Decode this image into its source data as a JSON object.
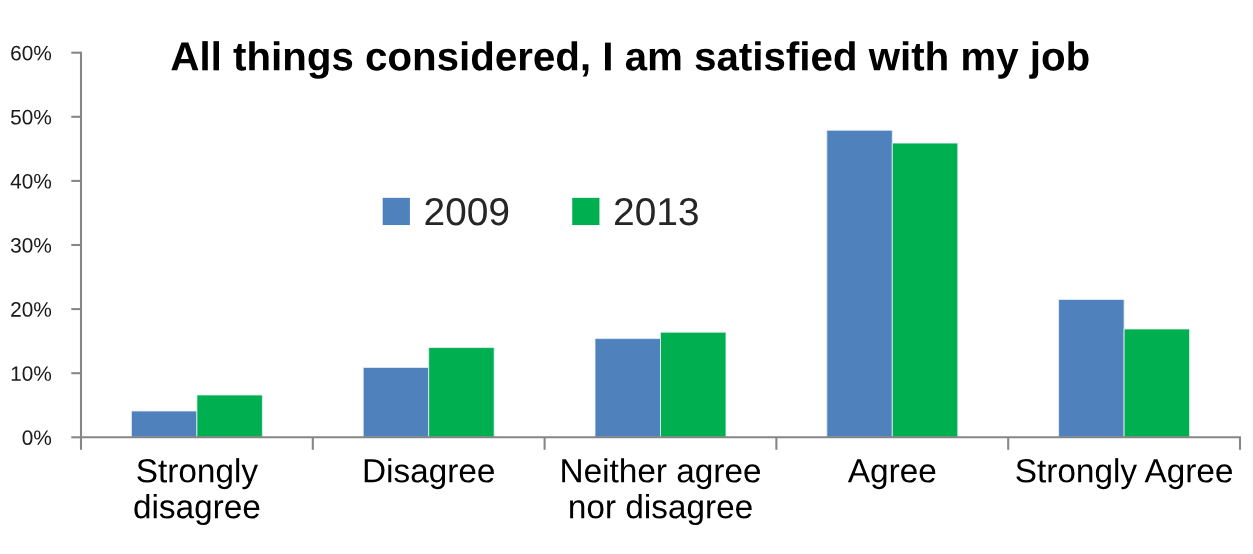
{
  "chart_data": {
    "type": "bar",
    "title": "All things considered, I am satisfied with my job",
    "categories": [
      "Strongly\ndisagree",
      "Disagree",
      "Neither agree\nnor disagree",
      "Agree",
      "Strongly Agree"
    ],
    "series": [
      {
        "name": "2009",
        "color": "#4f81bd",
        "values": [
          4.1,
          10.9,
          15.4,
          47.9,
          21.5
        ]
      },
      {
        "name": "2013",
        "color": "#00b050",
        "values": [
          6.6,
          14.0,
          16.4,
          45.9,
          16.9
        ]
      }
    ],
    "ylim": [
      0,
      60
    ],
    "yticks": [
      {
        "value": 0,
        "label": "0%"
      },
      {
        "value": 10,
        "label": "10%"
      },
      {
        "value": 20,
        "label": "20%"
      },
      {
        "value": 30,
        "label": "30%"
      },
      {
        "value": 40,
        "label": "40%"
      },
      {
        "value": 50,
        "label": "50%"
      },
      {
        "value": 60,
        "label": "60%"
      }
    ],
    "legend": "top left"
  }
}
